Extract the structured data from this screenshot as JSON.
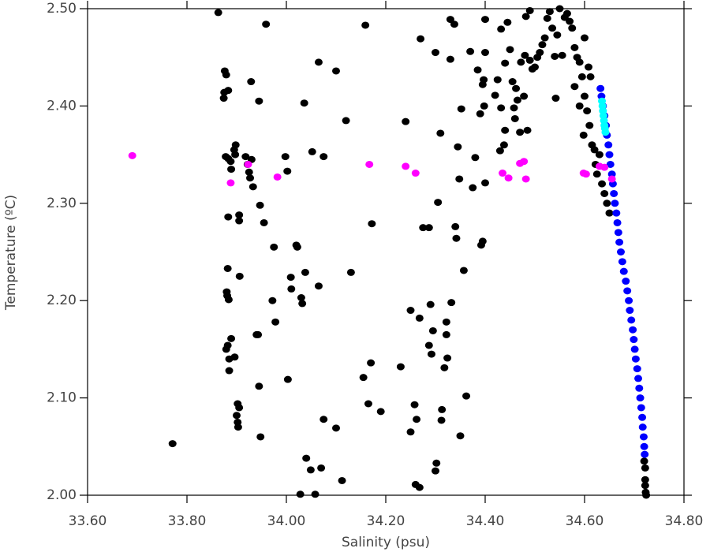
{
  "chart_data": {
    "type": "scatter",
    "x_label": "Salinity (psu)",
    "y_label": "Temperature (ºC)",
    "xlim": [
      33.6,
      34.8
    ],
    "xticks": [
      {
        "value": 33.6,
        "label": "33.60"
      },
      {
        "value": 33.8,
        "label": "33.80"
      },
      {
        "value": 34.0,
        "label": "34.00"
      },
      {
        "value": 34.2,
        "label": "34.20"
      },
      {
        "value": 34.4,
        "label": "34.40"
      },
      {
        "value": 34.6,
        "label": "34.60"
      },
      {
        "value": 34.8,
        "label": "34.80"
      }
    ],
    "ylim": [
      2.0,
      2.5
    ],
    "yticks": [
      {
        "value": 2.0,
        "label": "2.00"
      },
      {
        "value": 2.1,
        "label": "2.10"
      },
      {
        "value": 2.2,
        "label": "2.20"
      },
      {
        "value": 2.3,
        "label": "2.30"
      },
      {
        "value": 2.4,
        "label": "2.40"
      },
      {
        "value": 2.5,
        "label": "2.50"
      }
    ],
    "series": [
      {
        "color": "#000000",
        "points": [
          [
            33.863,
            2.496
          ],
          [
            33.959,
            2.484
          ],
          [
            34.159,
            2.483
          ],
          [
            33.771,
            2.053
          ],
          [
            33.876,
            2.436
          ],
          [
            33.879,
            2.432
          ],
          [
            33.875,
            2.414
          ],
          [
            33.874,
            2.408
          ],
          [
            33.883,
            2.416
          ],
          [
            33.878,
            2.348
          ],
          [
            33.888,
            2.343
          ],
          [
            33.898,
            2.36
          ],
          [
            33.895,
            2.355
          ],
          [
            33.897,
            2.35
          ],
          [
            33.889,
            2.335
          ],
          [
            33.883,
            2.286
          ],
          [
            33.905,
            2.288
          ],
          [
            33.905,
            2.282
          ],
          [
            33.882,
            2.233
          ],
          [
            33.88,
            2.209
          ],
          [
            33.881,
            2.205
          ],
          [
            33.884,
            2.201
          ],
          [
            33.906,
            2.225
          ],
          [
            33.882,
            2.154
          ],
          [
            33.879,
            2.15
          ],
          [
            33.889,
            2.161
          ],
          [
            33.885,
            2.14
          ],
          [
            33.896,
            2.142
          ],
          [
            33.885,
            2.128
          ],
          [
            33.902,
            2.094
          ],
          [
            33.905,
            2.09
          ],
          [
            33.902,
            2.075
          ],
          [
            33.903,
            2.07
          ],
          [
            33.9,
            2.082
          ],
          [
            33.883,
            2.346
          ],
          [
            33.918,
            2.348
          ],
          [
            33.922,
            2.34
          ],
          [
            33.925,
            2.332
          ],
          [
            33.93,
            2.345
          ],
          [
            33.927,
            2.326
          ],
          [
            33.933,
            2.317
          ],
          [
            33.929,
            2.425
          ],
          [
            33.945,
            2.405
          ],
          [
            33.947,
            2.298
          ],
          [
            33.943,
            2.165
          ],
          [
            33.94,
            2.165
          ],
          [
            33.945,
            2.112
          ],
          [
            33.948,
            2.06
          ],
          [
            33.955,
            2.28
          ],
          [
            33.975,
            2.255
          ],
          [
            33.972,
            2.2
          ],
          [
            33.978,
            2.178
          ],
          [
            33.998,
            2.348
          ],
          [
            34.002,
            2.333
          ],
          [
            34.003,
            2.119
          ],
          [
            34.009,
            2.224
          ],
          [
            34.01,
            2.212
          ],
          [
            34.02,
            2.257
          ],
          [
            34.022,
            2.255
          ],
          [
            34.03,
            2.203
          ],
          [
            34.032,
            2.197
          ],
          [
            34.036,
            2.403
          ],
          [
            34.038,
            2.229
          ],
          [
            34.04,
            2.038
          ],
          [
            34.049,
            2.026
          ],
          [
            34.052,
            2.353
          ],
          [
            34.058,
            2.001
          ],
          [
            34.065,
            2.445
          ],
          [
            34.065,
            2.215
          ],
          [
            34.07,
            2.028
          ],
          [
            34.075,
            2.348
          ],
          [
            34.075,
            2.078
          ],
          [
            34.1,
            2.436
          ],
          [
            34.1,
            2.069
          ],
          [
            34.112,
            2.015
          ],
          [
            34.12,
            2.385
          ],
          [
            34.13,
            2.229
          ],
          [
            34.028,
            2.001
          ],
          [
            34.155,
            2.121
          ],
          [
            34.165,
            2.094
          ],
          [
            34.17,
            2.136
          ],
          [
            34.172,
            2.279
          ],
          [
            34.19,
            2.086
          ],
          [
            34.23,
            2.132
          ],
          [
            34.24,
            2.384
          ],
          [
            34.25,
            2.19
          ],
          [
            34.25,
            2.065
          ],
          [
            34.258,
            2.093
          ],
          [
            34.262,
            2.078
          ],
          [
            34.26,
            2.011
          ],
          [
            34.268,
            2.008
          ],
          [
            34.27,
            2.469
          ],
          [
            34.268,
            2.182
          ],
          [
            34.275,
            2.275
          ],
          [
            34.287,
            2.275
          ],
          [
            34.287,
            2.154
          ],
          [
            34.29,
            2.196
          ],
          [
            34.292,
            2.145
          ],
          [
            34.295,
            2.169
          ],
          [
            34.3,
            2.455
          ],
          [
            34.302,
            2.033
          ],
          [
            34.3,
            2.025
          ],
          [
            34.305,
            2.301
          ],
          [
            34.31,
            2.372
          ],
          [
            34.312,
            2.077
          ],
          [
            34.313,
            2.088
          ],
          [
            34.318,
            2.131
          ],
          [
            34.322,
            2.165
          ],
          [
            34.322,
            2.178
          ],
          [
            34.324,
            2.141
          ],
          [
            34.33,
            2.448
          ],
          [
            34.33,
            2.489
          ],
          [
            34.332,
            2.198
          ],
          [
            34.338,
            2.484
          ],
          [
            34.34,
            2.276
          ],
          [
            34.342,
            2.264
          ],
          [
            34.345,
            2.358
          ],
          [
            34.348,
            2.325
          ],
          [
            34.35,
            2.061
          ],
          [
            34.352,
            2.397
          ],
          [
            34.357,
            2.231
          ],
          [
            34.362,
            2.102
          ],
          [
            34.37,
            2.456
          ],
          [
            34.375,
            2.316
          ],
          [
            34.38,
            2.347
          ],
          [
            34.385,
            2.437
          ],
          [
            34.39,
            2.392
          ],
          [
            34.392,
            2.257
          ],
          [
            34.395,
            2.261
          ],
          [
            34.398,
            2.4
          ],
          [
            34.395,
            2.422
          ],
          [
            34.397,
            2.427
          ],
          [
            34.4,
            2.455
          ],
          [
            34.4,
            2.321
          ],
          [
            34.4,
            2.489
          ],
          [
            34.42,
            2.411
          ],
          [
            34.425,
            2.427
          ],
          [
            34.43,
            2.354
          ],
          [
            34.432,
            2.398
          ],
          [
            34.432,
            2.479
          ],
          [
            34.438,
            2.36
          ],
          [
            34.44,
            2.375
          ],
          [
            34.44,
            2.444
          ],
          [
            34.445,
            2.486
          ],
          [
            34.45,
            2.458
          ],
          [
            34.455,
            2.425
          ],
          [
            34.458,
            2.398
          ],
          [
            34.46,
            2.387
          ],
          [
            34.462,
            2.418
          ],
          [
            34.465,
            2.406
          ],
          [
            34.47,
            2.373
          ],
          [
            34.472,
            2.445
          ],
          [
            34.478,
            2.41
          ],
          [
            34.48,
            2.452
          ],
          [
            34.482,
            2.492
          ],
          [
            34.485,
            2.375
          ],
          [
            34.49,
            2.498
          ],
          [
            34.49,
            2.447
          ],
          [
            34.495,
            2.438
          ],
          [
            34.5,
            2.44
          ],
          [
            34.505,
            2.45
          ],
          [
            34.51,
            2.455
          ],
          [
            34.515,
            2.463
          ],
          [
            34.52,
            2.47
          ],
          [
            34.525,
            2.49
          ],
          [
            34.53,
            2.497
          ],
          [
            34.535,
            2.48
          ],
          [
            34.54,
            2.451
          ],
          [
            34.542,
            2.408
          ],
          [
            34.545,
            2.473
          ],
          [
            34.55,
            2.5
          ],
          [
            34.555,
            2.452
          ],
          [
            34.56,
            2.491
          ],
          [
            34.565,
            2.495
          ],
          [
            34.57,
            2.487
          ],
          [
            34.575,
            2.48
          ],
          [
            34.58,
            2.46
          ],
          [
            34.585,
            2.45
          ],
          [
            34.59,
            2.445
          ],
          [
            34.595,
            2.43
          ],
          [
            34.6,
            2.47
          ],
          [
            34.6,
            2.41
          ],
          [
            34.605,
            2.395
          ],
          [
            34.61,
            2.38
          ],
          [
            34.612,
            2.43
          ],
          [
            34.615,
            2.36
          ],
          [
            34.62,
            2.355
          ],
          [
            34.622,
            2.34
          ],
          [
            34.625,
            2.33
          ],
          [
            34.63,
            2.35
          ],
          [
            34.635,
            2.32
          ],
          [
            34.64,
            2.31
          ],
          [
            34.645,
            2.3
          ],
          [
            34.65,
            2.29
          ],
          [
            34.58,
            2.42
          ],
          [
            34.59,
            2.4
          ],
          [
            34.598,
            2.37
          ],
          [
            34.608,
            2.44
          ],
          [
            34.72,
            2.035
          ],
          [
            34.722,
            2.028
          ],
          [
            34.722,
            2.016
          ],
          [
            34.722,
            2.01
          ],
          [
            34.723,
            2.003
          ],
          [
            34.724,
            2.0
          ]
        ]
      },
      {
        "color": "#0000ff",
        "points": [
          [
            34.632,
            2.418
          ],
          [
            34.634,
            2.41
          ],
          [
            34.637,
            2.4
          ],
          [
            34.64,
            2.39
          ],
          [
            34.643,
            2.38
          ],
          [
            34.645,
            2.37
          ],
          [
            34.648,
            2.36
          ],
          [
            34.65,
            2.35
          ],
          [
            34.652,
            2.34
          ],
          [
            34.655,
            2.33
          ],
          [
            34.657,
            2.32
          ],
          [
            34.659,
            2.31
          ],
          [
            34.661,
            2.3
          ],
          [
            34.664,
            2.29
          ],
          [
            34.666,
            2.28
          ],
          [
            34.668,
            2.27
          ],
          [
            34.67,
            2.26
          ],
          [
            34.673,
            2.25
          ],
          [
            34.676,
            2.24
          ],
          [
            34.679,
            2.23
          ],
          [
            34.683,
            2.22
          ],
          [
            34.686,
            2.21
          ],
          [
            34.689,
            2.2
          ],
          [
            34.691,
            2.19
          ],
          [
            34.694,
            2.18
          ],
          [
            34.697,
            2.17
          ],
          [
            34.699,
            2.16
          ],
          [
            34.701,
            2.15
          ],
          [
            34.703,
            2.14
          ],
          [
            34.706,
            2.13
          ],
          [
            34.708,
            2.12
          ],
          [
            34.71,
            2.11
          ],
          [
            34.712,
            2.1
          ],
          [
            34.714,
            2.09
          ],
          [
            34.716,
            2.08
          ],
          [
            34.717,
            2.07
          ],
          [
            34.719,
            2.06
          ],
          [
            34.72,
            2.05
          ],
          [
            34.721,
            2.042
          ]
        ]
      },
      {
        "color": "#00ffff",
        "points": [
          [
            34.635,
            2.405
          ],
          [
            34.636,
            2.4
          ],
          [
            34.637,
            2.395
          ],
          [
            34.638,
            2.39
          ],
          [
            34.639,
            2.385
          ],
          [
            34.64,
            2.38
          ],
          [
            34.641,
            2.377
          ],
          [
            34.642,
            2.373
          ]
        ]
      },
      {
        "color": "#ff00ff",
        "points": [
          [
            33.69,
            2.349
          ],
          [
            33.888,
            2.321
          ],
          [
            33.923,
            2.34
          ],
          [
            33.982,
            2.327
          ],
          [
            34.167,
            2.34
          ],
          [
            34.24,
            2.338
          ],
          [
            34.26,
            2.331
          ],
          [
            34.435,
            2.331
          ],
          [
            34.447,
            2.326
          ],
          [
            34.47,
            2.341
          ],
          [
            34.478,
            2.343
          ],
          [
            34.482,
            2.325
          ],
          [
            34.598,
            2.331
          ],
          [
            34.603,
            2.33
          ],
          [
            34.63,
            2.338
          ],
          [
            34.64,
            2.337
          ],
          [
            34.655,
            2.325
          ]
        ]
      }
    ]
  }
}
